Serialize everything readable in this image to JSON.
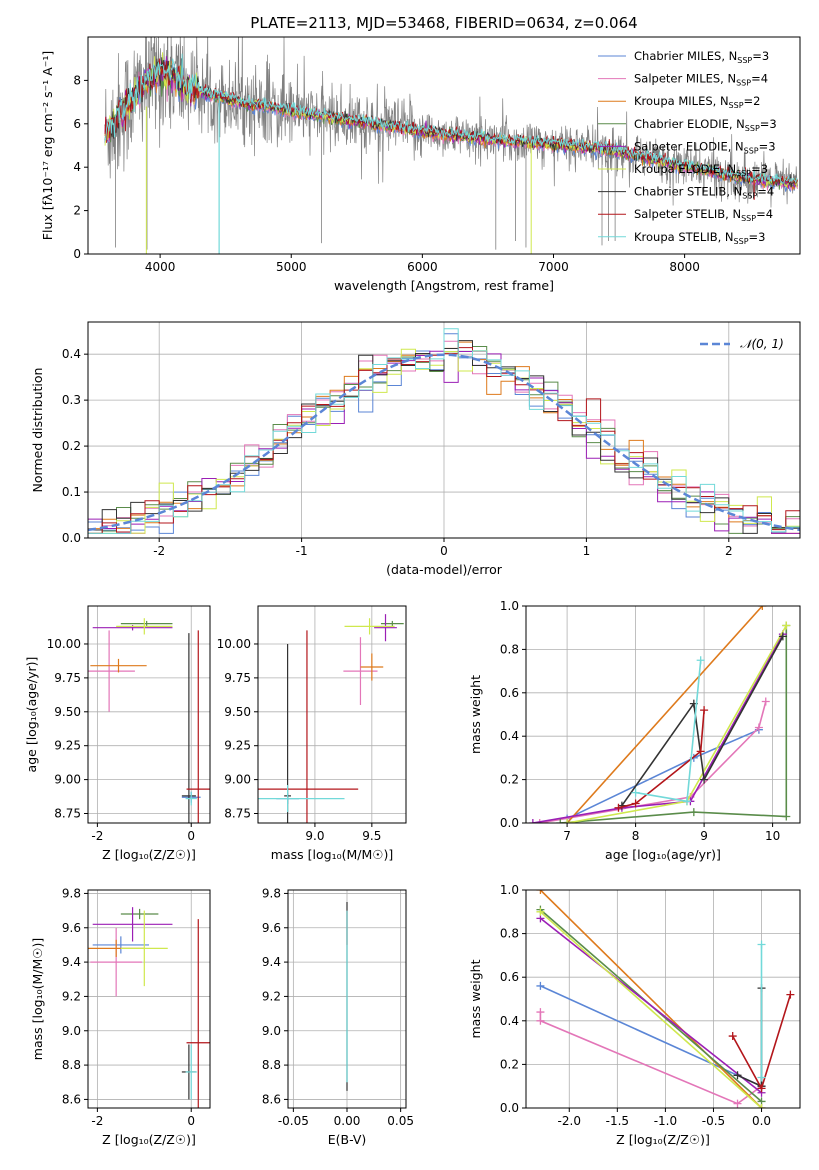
{
  "colors": {
    "Chabrier MILES": "#5b86d6",
    "Salpeter MILES": "#e376b8",
    "Kroupa MILES": "#de7a1c",
    "Chabrier ELODIE": "#5a8c4a",
    "Salpeter ELODIE": "#9b1fb5",
    "Kroupa ELODIE": "#cfe84e",
    "Chabrier STELIB": "#333333",
    "Salpeter STELIB": "#b3161b",
    "Kroupa STELIB": "#72d9d9",
    "data": "#808080",
    "normal": "#5b86d6"
  },
  "chart_data": [
    {
      "id": "spectrum",
      "type": "line",
      "title": "PLATE=2113, MJD=53468, FIBERID=0634, z=0.064",
      "xlabel": "wavelength [Angstrom, rest frame]",
      "ylabel": "Flux [fλ10⁻¹⁷ erg cm⁻² s⁻¹ A⁻¹]",
      "xlim": [
        3450,
        8880
      ],
      "ylim": [
        0,
        10
      ],
      "xticks": [
        4000,
        5000,
        6000,
        7000,
        8000
      ],
      "yticks": [
        0,
        2,
        4,
        6,
        8
      ],
      "grid": false,
      "legend_placement": "top-right",
      "legend": [
        {
          "name": "Chabrier MILES, N_SSP=3",
          "pre": "Chabrier MILES, N",
          "sub": "SSP",
          "post": "=3"
        },
        {
          "name": "Salpeter MILES, N_SSP=4",
          "pre": "Salpeter MILES, N",
          "sub": "SSP",
          "post": "=4"
        },
        {
          "name": "Kroupa MILES, N_SSP=2",
          "pre": "Kroupa MILES, N",
          "sub": "SSP",
          "post": "=2"
        },
        {
          "name": "Chabrier ELODIE, N_SSP=3",
          "pre": "Chabrier ELODIE, N",
          "sub": "SSP",
          "post": "=3"
        },
        {
          "name": "Salpeter ELODIE, N_SSP=3",
          "pre": "Salpeter ELODIE, N",
          "sub": "SSP",
          "post": "=3"
        },
        {
          "name": "Kroupa ELODIE, N_SSP=3",
          "pre": "Kroupa ELODIE, N",
          "sub": "SSP",
          "post": "=3"
        },
        {
          "name": "Chabrier STELIB, N_SSP=4",
          "pre": "Chabrier STELIB, N",
          "sub": "SSP",
          "post": "=4"
        },
        {
          "name": "Salpeter STELIB, N_SSP=4",
          "pre": "Salpeter STELIB, N",
          "sub": "SSP",
          "post": "=4"
        },
        {
          "name": "Kroupa STELIB, N_SSP=3",
          "pre": "Kroupa STELIB, N",
          "sub": "SSP",
          "post": "=3"
        }
      ],
      "continuum": {
        "x": [
          3600,
          3700,
          3800,
          3900,
          4000,
          4100,
          4200,
          4400,
          4600,
          4800,
          5000,
          5200,
          5400,
          5600,
          5800,
          6000,
          6200,
          6400,
          6600,
          6800,
          7000,
          7200,
          7400,
          7600,
          7800,
          8000,
          8200,
          8400,
          8600,
          8850
        ],
        "y": [
          5.6,
          6.5,
          7.2,
          8.0,
          8.4,
          8.2,
          7.7,
          7.3,
          7.0,
          6.8,
          6.6,
          6.4,
          6.2,
          6.0,
          5.85,
          5.65,
          5.5,
          5.35,
          5.25,
          5.15,
          5.05,
          4.95,
          4.8,
          4.6,
          4.3,
          4.05,
          3.8,
          3.55,
          3.4,
          3.25
        ]
      }
    },
    {
      "id": "residuals",
      "type": "line",
      "xlabel": "(data-model)/error",
      "ylabel": "Normed distribution",
      "xlim": [
        -2.5,
        2.5
      ],
      "ylim": [
        0,
        0.47
      ],
      "xticks": [
        -2,
        -1,
        0,
        1,
        2
      ],
      "yticks": [
        0.0,
        0.1,
        0.2,
        0.3,
        0.4
      ],
      "grid": true,
      "legend_placement": "top-right",
      "legend": [
        {
          "name": "N(0,1)",
          "label": "𝒩(0, 1)"
        }
      ],
      "bin_width": 0.1,
      "series": "nine step histograms of normalized residuals, one per model, scattering around the N(0,1) curve"
    },
    {
      "id": "age_vs_Z",
      "type": "scatter",
      "xlabel": "Z [log₁₀(Z/Z☉)]",
      "ylabel": "age  [log₁₀(age/yr)]",
      "xlim": [
        -2.2,
        0.4
      ],
      "ylim": [
        8.68,
        10.28
      ],
      "xticks": [
        -2,
        0
      ],
      "yticks": [
        8.75,
        9.0,
        9.25,
        9.5,
        9.75,
        10.0
      ],
      "grid": true,
      "errorbars": [
        {
          "model": "Chabrier MILES",
          "x": 0.0,
          "y": 8.87,
          "xerr": 0.2,
          "yerr": 0.04
        },
        {
          "model": "Salpeter MILES",
          "x": -1.75,
          "y": 9.8,
          "xerr": 0.55,
          "yerr": 0.3
        },
        {
          "model": "Kroupa MILES",
          "x": -1.55,
          "y": 9.84,
          "xerr": 0.6,
          "yerr": 0.05
        },
        {
          "model": "Chabrier ELODIE",
          "x": -0.95,
          "y": 10.15,
          "xerr": 0.55,
          "yerr": 0.02
        },
        {
          "model": "Salpeter ELODIE",
          "x": -1.25,
          "y": 10.12,
          "xerr": 0.85,
          "yerr": 0.02
        },
        {
          "model": "Kroupa ELODIE",
          "x": -1.0,
          "y": 10.13,
          "xerr": 0.6,
          "yerr": 0.06
        },
        {
          "model": "Chabrier STELIB",
          "x": -0.05,
          "y": 8.88,
          "xerr": 0.15,
          "yerr": 1.2
        },
        {
          "model": "Salpeter STELIB",
          "x": 0.15,
          "y": 8.93,
          "xerr": 0.25,
          "yerr": 1.17
        },
        {
          "model": "Kroupa STELIB",
          "x": 0.0,
          "y": 8.86,
          "xerr": 0.12,
          "yerr": 0.05
        }
      ]
    },
    {
      "id": "age_vs_mass",
      "type": "scatter",
      "xlabel": "mass [log₁₀(M/M☉)]",
      "xlim": [
        8.5,
        9.8
      ],
      "ylim": [
        8.68,
        10.28
      ],
      "xticks": [
        9.0,
        9.5
      ],
      "yticks": [
        8.75,
        9.0,
        9.25,
        9.5,
        9.75,
        10.0
      ],
      "grid": true,
      "errorbars": [
        {
          "model": "Chabrier MILES",
          "x": 8.76,
          "y": 8.86,
          "xerr": 0.1,
          "yerr": 0.04
        },
        {
          "model": "Salpeter MILES",
          "x": 9.4,
          "y": 9.8,
          "xerr": 0.15,
          "yerr": 0.25
        },
        {
          "model": "Kroupa MILES",
          "x": 9.5,
          "y": 9.83,
          "xerr": 0.1,
          "yerr": 0.1
        },
        {
          "model": "Chabrier ELODIE",
          "x": 9.68,
          "y": 10.15,
          "xerr": 0.1,
          "yerr": 0.02
        },
        {
          "model": "Salpeter ELODIE",
          "x": 9.62,
          "y": 10.12,
          "xerr": 0.1,
          "yerr": 0.1
        },
        {
          "model": "Kroupa ELODIE",
          "x": 9.48,
          "y": 10.13,
          "xerr": 0.22,
          "yerr": 0.06
        },
        {
          "model": "Chabrier STELIB",
          "x": 8.76,
          "y": 8.88,
          "xerr": 0.03,
          "yerr": 1.12
        },
        {
          "model": "Salpeter STELIB",
          "x": 8.93,
          "y": 8.93,
          "xerr": 0.45,
          "yerr": 1.17
        },
        {
          "model": "Kroupa STELIB",
          "x": 8.76,
          "y": 8.86,
          "xerr": 0.5,
          "yerr": 0.1
        }
      ]
    },
    {
      "id": "massweight_vs_age",
      "type": "line",
      "xlabel": "age  [log₁₀(age/yr)]",
      "ylabel": "mass weight",
      "xlim": [
        6.4,
        10.4
      ],
      "ylim": [
        0,
        1.0
      ],
      "xticks": [
        7,
        8,
        9,
        10
      ],
      "yticks": [
        0.0,
        0.2,
        0.4,
        0.6,
        0.8,
        1.0
      ],
      "grid": true,
      "series": [
        {
          "model": "Chabrier MILES",
          "points": [
            [
              7.0,
              0.02
            ],
            [
              8.85,
              0.3
            ],
            [
              9.8,
              0.43
            ]
          ]
        },
        {
          "model": "Salpeter MILES",
          "points": [
            [
              6.6,
              0.0
            ],
            [
              8.8,
              0.12
            ],
            [
              9.8,
              0.44
            ],
            [
              9.9,
              0.56
            ]
          ]
        },
        {
          "model": "Kroupa MILES",
          "points": [
            [
              7.0,
              0.0
            ],
            [
              9.85,
              1.0
            ]
          ]
        },
        {
          "model": "Chabrier ELODIE",
          "points": [
            [
              6.9,
              0.0
            ],
            [
              8.85,
              0.05
            ],
            [
              10.2,
              0.03
            ],
            [
              10.2,
              0.91
            ]
          ]
        },
        {
          "model": "Salpeter ELODIE",
          "points": [
            [
              6.5,
              0.0
            ],
            [
              7.8,
              0.07
            ],
            [
              8.8,
              0.1
            ],
            [
              10.15,
              0.87
            ]
          ]
        },
        {
          "model": "Kroupa ELODIE",
          "points": [
            [
              7.0,
              0.0
            ],
            [
              8.75,
              0.1
            ],
            [
              10.2,
              0.91
            ]
          ]
        },
        {
          "model": "Chabrier STELIB",
          "points": [
            [
              7.8,
              0.08
            ],
            [
              8.85,
              0.55
            ],
            [
              9.0,
              0.2
            ],
            [
              10.15,
              0.86
            ]
          ]
        },
        {
          "model": "Salpeter STELIB",
          "points": [
            [
              7.75,
              0.07
            ],
            [
              8.0,
              0.09
            ],
            [
              8.95,
              0.33
            ],
            [
              9.0,
              0.52
            ]
          ]
        },
        {
          "model": "Kroupa STELIB",
          "points": [
            [
              8.0,
              0.14
            ],
            [
              8.75,
              0.1
            ],
            [
              8.95,
              0.75
            ]
          ]
        }
      ]
    },
    {
      "id": "mass_vs_Z",
      "type": "scatter",
      "xlabel": "Z [log₁₀(Z/Z☉)]",
      "ylabel": "mass [log₁₀(M/M☉)]",
      "xlim": [
        -2.2,
        0.4
      ],
      "ylim": [
        8.55,
        9.82
      ],
      "xticks": [
        -2,
        0
      ],
      "yticks": [
        8.6,
        8.8,
        9.0,
        9.2,
        9.4,
        9.6,
        9.8
      ],
      "grid": true,
      "errorbars": [
        {
          "model": "Chabrier MILES",
          "x": -1.5,
          "y": 9.5,
          "xerr": 0.6,
          "yerr": 0.05
        },
        {
          "model": "Salpeter MILES",
          "x": -1.6,
          "y": 9.4,
          "xerr": 0.55,
          "yerr": 0.2
        },
        {
          "model": "Kroupa MILES",
          "x": -1.6,
          "y": 9.48,
          "xerr": 0.6,
          "yerr": 0.05
        },
        {
          "model": "Chabrier ELODIE",
          "x": -1.1,
          "y": 9.68,
          "xerr": 0.4,
          "yerr": 0.03
        },
        {
          "model": "Salpeter ELODIE",
          "x": -1.25,
          "y": 9.62,
          "xerr": 0.85,
          "yerr": 0.1
        },
        {
          "model": "Kroupa ELODIE",
          "x": -1.0,
          "y": 9.48,
          "xerr": 0.5,
          "yerr": 0.22
        },
        {
          "model": "Chabrier STELIB",
          "x": -0.05,
          "y": 8.76,
          "xerr": 0.15,
          "yerr": 0.16
        },
        {
          "model": "Salpeter STELIB",
          "x": 0.15,
          "y": 8.93,
          "xerr": 0.25,
          "yerr": 0.72
        },
        {
          "model": "Kroupa STELIB",
          "x": 0.0,
          "y": 8.76,
          "xerr": 0.12,
          "yerr": 0.16
        }
      ]
    },
    {
      "id": "mass_vs_EBV",
      "type": "scatter",
      "xlabel": "E(B-V)",
      "xlim": [
        -0.055,
        0.055
      ],
      "ylim": [
        8.55,
        9.82
      ],
      "xticks": [
        -0.05,
        0.0,
        0.05
      ],
      "yticks": [
        8.6,
        8.8,
        9.0,
        9.2,
        9.4,
        9.6,
        9.8
      ],
      "grid": true,
      "errorbars": [
        {
          "model": "Chabrier STELIB",
          "x": 0.0,
          "y": 9.2,
          "xerr": 0.0,
          "yerr": 0.55
        },
        {
          "model": "Salpeter STELIB",
          "x": 0.0,
          "y": 9.6,
          "xerr": 0.0,
          "yerr": 0.1
        },
        {
          "model": "Kroupa STELIB",
          "x": 0.0,
          "y": 9.2,
          "xerr": 0.0,
          "yerr": 0.5
        }
      ]
    },
    {
      "id": "massweight_vs_Z",
      "type": "line",
      "xlabel": "Z [log₁₀(Z/Z☉)]",
      "ylabel": "mass weight",
      "xlim": [
        -2.45,
        0.4
      ],
      "ylim": [
        0,
        1.0
      ],
      "xticks": [
        -2.0,
        -1.5,
        -1.0,
        -0.5,
        0.0
      ],
      "yticks": [
        0.0,
        0.2,
        0.4,
        0.6,
        0.8,
        1.0
      ],
      "grid": true,
      "series": [
        {
          "model": "Chabrier MILES",
          "points": [
            [
              -2.3,
              0.56
            ],
            [
              0.0,
              0.1
            ]
          ]
        },
        {
          "model": "Salpeter MILES",
          "points": [
            [
              -2.3,
              0.44
            ],
            [
              -2.3,
              0.4
            ],
            [
              -0.25,
              0.02
            ],
            [
              0.0,
              0.1
            ]
          ]
        },
        {
          "model": "Kroupa MILES",
          "points": [
            [
              -2.3,
              1.0
            ],
            [
              0.0,
              0.0
            ]
          ]
        },
        {
          "model": "Chabrier ELODIE",
          "points": [
            [
              -2.3,
              0.91
            ],
            [
              0.0,
              0.03
            ]
          ]
        },
        {
          "model": "Salpeter ELODIE",
          "points": [
            [
              -2.3,
              0.87
            ],
            [
              0.0,
              0.07
            ]
          ]
        },
        {
          "model": "Kroupa ELODIE",
          "points": [
            [
              -2.3,
              0.9
            ],
            [
              0.0,
              0.0
            ]
          ]
        },
        {
          "model": "Chabrier STELIB",
          "points": [
            [
              -0.25,
              0.15
            ],
            [
              0.0,
              0.1
            ],
            [
              0.0,
              0.55
            ]
          ]
        },
        {
          "model": "Salpeter STELIB",
          "points": [
            [
              -0.3,
              0.33
            ],
            [
              0.0,
              0.09
            ],
            [
              0.3,
              0.52
            ]
          ]
        },
        {
          "model": "Kroupa STELIB",
          "points": [
            [
              0.0,
              0.14
            ],
            [
              0.0,
              0.75
            ]
          ]
        }
      ]
    }
  ]
}
